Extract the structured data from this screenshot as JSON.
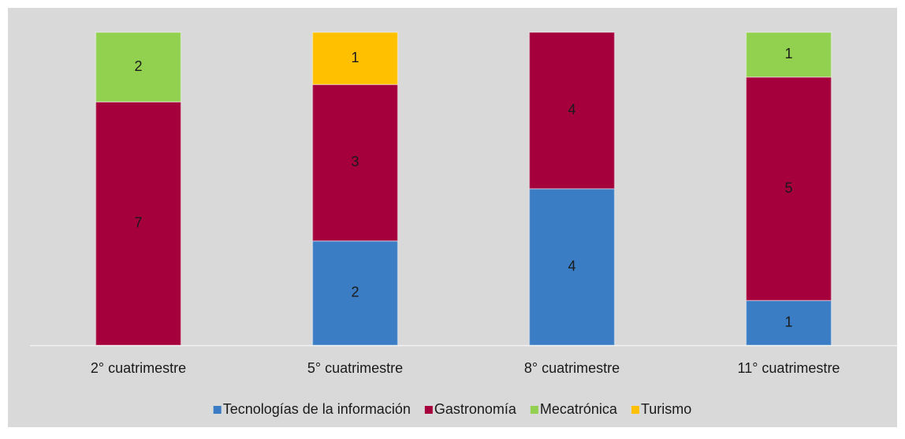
{
  "chart_data": {
    "type": "bar",
    "stacking": "percent",
    "categories": [
      "2° cuatrimestre",
      "5° cuatrimestre",
      "8° cuatrimestre",
      "11° cuatrimestre"
    ],
    "series": [
      {
        "name": "Tecnologías de la información",
        "color": "#3a7dc5",
        "values": [
          null,
          2,
          4,
          1
        ]
      },
      {
        "name": "Gastronomía",
        "color": "#a5003b",
        "values": [
          7,
          3,
          4,
          5
        ]
      },
      {
        "name": "Mecatrónica",
        "color": "#92d050",
        "values": [
          2,
          null,
          null,
          1
        ]
      },
      {
        "name": "Turismo",
        "color": "#ffc000",
        "values": [
          null,
          1,
          null,
          null
        ]
      }
    ],
    "legend": "bottom"
  }
}
